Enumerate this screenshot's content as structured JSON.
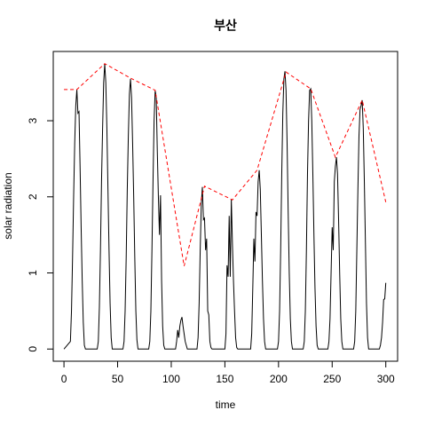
{
  "chart_data": {
    "type": "line",
    "title": "부산",
    "x_label": "time",
    "y_label": "solar radiation",
    "xlim": [
      -10,
      311
    ],
    "ylim": [
      -0.16,
      3.91
    ],
    "xticks": [
      0,
      50,
      100,
      150,
      200,
      250,
      300
    ],
    "yticks": [
      0,
      1,
      2,
      3
    ],
    "series": [
      {
        "color": "#000000",
        "dashed": false,
        "x": [
          0,
          6,
          7,
          8,
          9,
          10,
          11,
          12,
          13,
          14,
          15,
          16,
          17,
          18,
          19,
          20,
          31,
          32,
          33,
          34,
          35,
          36,
          37,
          38,
          39,
          40,
          41,
          42,
          43,
          44,
          45,
          55,
          56,
          57,
          58,
          59,
          60,
          61,
          62,
          63,
          64,
          65,
          66,
          67,
          68,
          69,
          79,
          80,
          81,
          82,
          83,
          84,
          85,
          86,
          87,
          88,
          89,
          90,
          91,
          92,
          93,
          94,
          104,
          105,
          106,
          107,
          108,
          109,
          110,
          111,
          112,
          113,
          114,
          115,
          124,
          125,
          126,
          127,
          128,
          129,
          130,
          131,
          132,
          133,
          134,
          135,
          136,
          137,
          138,
          150,
          151,
          152,
          153,
          154,
          155,
          156,
          157,
          158,
          159,
          160,
          161,
          162,
          174,
          175,
          176,
          177,
          178,
          179,
          180,
          181,
          182,
          183,
          184,
          185,
          186,
          187,
          188,
          199,
          200,
          201,
          202,
          203,
          204,
          205,
          206,
          207,
          208,
          209,
          210,
          211,
          212,
          213,
          223,
          224,
          225,
          226,
          227,
          228,
          229,
          230,
          231,
          232,
          233,
          234,
          235,
          236,
          237,
          246,
          247,
          248,
          249,
          250,
          251,
          252,
          253,
          254,
          255,
          256,
          257,
          258,
          259,
          260,
          270,
          271,
          272,
          273,
          274,
          275,
          276,
          277,
          278,
          279,
          280,
          281,
          282,
          283,
          284,
          294,
          295,
          296,
          297,
          298,
          299,
          300
        ],
        "values": [
          0,
          0.1,
          0.5,
          1.2,
          2.0,
          2.7,
          3.2,
          3.41,
          3.1,
          3.12,
          2.4,
          1.6,
          0.9,
          0.35,
          0.05,
          0,
          0,
          0.1,
          0.55,
          1.3,
          2.2,
          2.9,
          3.5,
          3.75,
          3.5,
          2.9,
          2.1,
          1.3,
          0.6,
          0.15,
          0,
          0,
          0.1,
          0.5,
          1.2,
          2.1,
          2.8,
          3.35,
          3.55,
          3.3,
          2.7,
          2.0,
          1.2,
          0.5,
          0.12,
          0,
          0,
          0.1,
          0.5,
          1.3,
          2.2,
          3.0,
          3.4,
          3.3,
          2.6,
          2.0,
          1.5,
          2.02,
          0.9,
          0.3,
          0.05,
          0,
          0,
          0.1,
          0.25,
          0.15,
          0.3,
          0.38,
          0.42,
          0.3,
          0.2,
          0.1,
          0.05,
          0,
          0,
          0.15,
          0.6,
          1.3,
          1.9,
          2.13,
          1.7,
          1.72,
          1.3,
          1.45,
          0.5,
          0.45,
          0.1,
          0.02,
          0,
          0,
          0.2,
          1.1,
          0.95,
          1.75,
          0.95,
          1.97,
          1.4,
          0.9,
          0.5,
          0.15,
          0.02,
          0,
          0,
          0.2,
          0.8,
          1.45,
          1.15,
          1.8,
          1.75,
          2.2,
          2.35,
          2.1,
          1.5,
          0.9,
          0.4,
          0.1,
          0,
          0,
          0.1,
          0.5,
          1.3,
          2.3,
          3.1,
          3.55,
          3.65,
          3.4,
          2.7,
          1.8,
          1.0,
          0.4,
          0.1,
          0,
          0,
          0.1,
          0.5,
          1.3,
          2.3,
          3.0,
          3.4,
          3.42,
          3.0,
          2.3,
          1.5,
          0.8,
          0.3,
          0.05,
          0,
          0,
          0.1,
          0.4,
          1.0,
          1.6,
          1.3,
          2.2,
          2.4,
          2.52,
          2.3,
          1.7,
          1.0,
          0.4,
          0.1,
          0,
          0,
          0.1,
          0.5,
          1.3,
          2.1,
          2.8,
          3.15,
          3.2,
          3.27,
          2.9,
          2.2,
          1.4,
          0.6,
          0.15,
          0,
          0,
          0.05,
          0.15,
          0.35,
          0.65,
          0.66,
          0.87
        ]
      },
      {
        "color": "#ff0000",
        "dashed": true,
        "x": [
          0,
          12,
          38,
          62,
          85,
          112,
          131,
          157,
          180,
          207,
          230,
          253,
          278,
          300
        ],
        "values": [
          3.41,
          3.41,
          3.75,
          3.56,
          3.4,
          1.09,
          2.14,
          1.96,
          2.35,
          3.64,
          3.42,
          2.52,
          3.27,
          1.93
        ]
      }
    ]
  }
}
